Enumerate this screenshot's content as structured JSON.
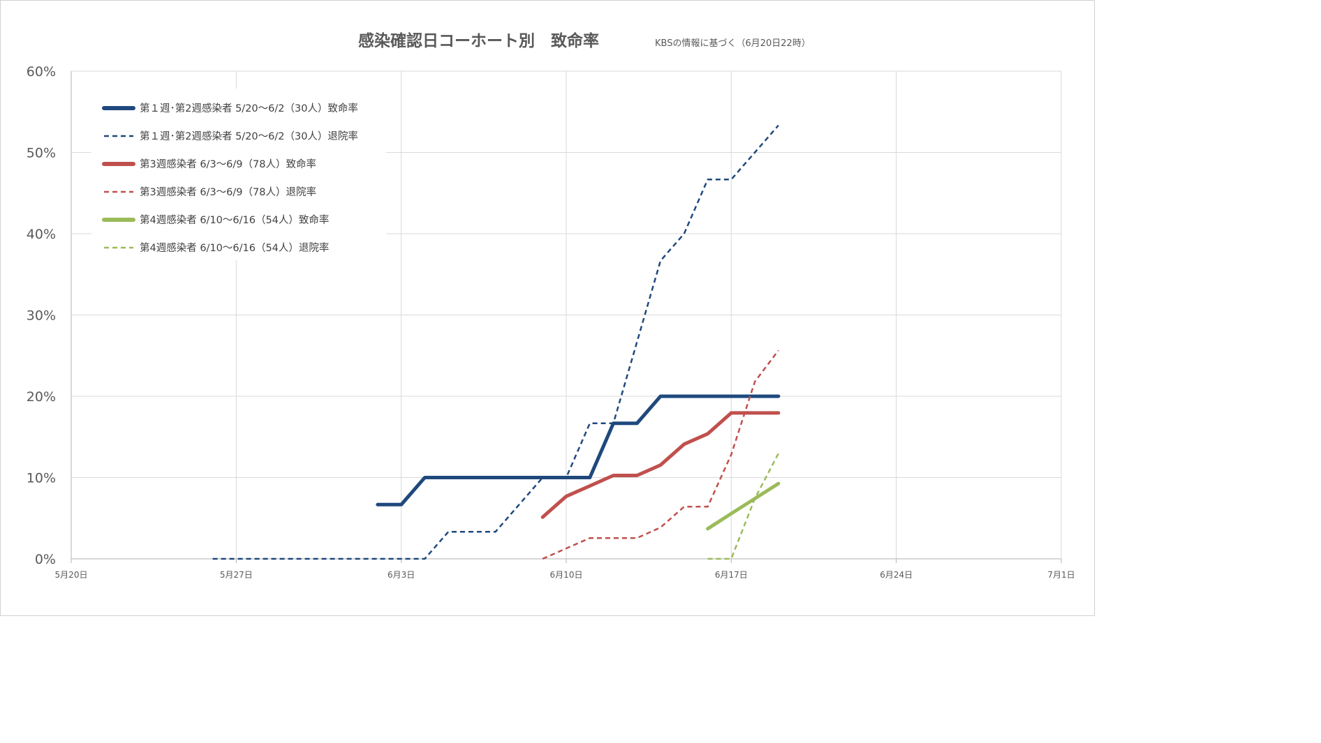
{
  "chart_data": {
    "type": "line",
    "title": "感染確認日コーホート別　致命率",
    "subtitle": "KBSの情報に基づく（6月20日22時）",
    "x_tick_labels": [
      "5月20日",
      "5月27日",
      "6月3日",
      "6月10日",
      "6月17日",
      "6月24日",
      "7月1日"
    ],
    "x_tick_dates": [
      "2020-05-20",
      "2020-05-27",
      "2020-06-03",
      "2020-06-10",
      "2020-06-17",
      "2020-06-24",
      "2020-07-01"
    ],
    "xlim": [
      "2020-05-20",
      "2020-07-01"
    ],
    "y_tick_labels": [
      "0%",
      "10%",
      "20%",
      "30%",
      "40%",
      "50%",
      "60%"
    ],
    "ylim": [
      0,
      60
    ],
    "grid": true,
    "legend_position": "top-left",
    "series": [
      {
        "name": "第１週･第2週感染者  5/20～6/2（30人）致命率",
        "color": "#1F497D",
        "style": "solid",
        "width": 5,
        "points": [
          [
            "2020-06-02",
            6.67
          ],
          [
            "2020-06-03",
            6.67
          ],
          [
            "2020-06-04",
            10.0
          ],
          [
            "2020-06-05",
            10.0
          ],
          [
            "2020-06-06",
            10.0
          ],
          [
            "2020-06-07",
            10.0
          ],
          [
            "2020-06-08",
            10.0
          ],
          [
            "2020-06-09",
            10.0
          ],
          [
            "2020-06-10",
            10.0
          ],
          [
            "2020-06-11",
            10.0
          ],
          [
            "2020-06-12",
            16.67
          ],
          [
            "2020-06-13",
            16.67
          ],
          [
            "2020-06-14",
            20.0
          ],
          [
            "2020-06-15",
            20.0
          ],
          [
            "2020-06-16",
            20.0
          ],
          [
            "2020-06-17",
            20.0
          ],
          [
            "2020-06-18",
            20.0
          ],
          [
            "2020-06-19",
            20.0
          ]
        ]
      },
      {
        "name": "第１週･第2週感染者  5/20～6/2（30人）退院率",
        "color": "#1F497D",
        "style": "dashed",
        "width": 2.5,
        "points": [
          [
            "2020-05-26",
            0
          ],
          [
            "2020-05-27",
            0
          ],
          [
            "2020-05-28",
            0
          ],
          [
            "2020-05-29",
            0
          ],
          [
            "2020-05-30",
            0
          ],
          [
            "2020-05-31",
            0
          ],
          [
            "2020-06-01",
            0
          ],
          [
            "2020-06-02",
            0
          ],
          [
            "2020-06-03",
            0
          ],
          [
            "2020-06-04",
            0
          ],
          [
            "2020-06-05",
            3.33
          ],
          [
            "2020-06-06",
            3.33
          ],
          [
            "2020-06-07",
            3.33
          ],
          [
            "2020-06-08",
            6.67
          ],
          [
            "2020-06-09",
            10.0
          ],
          [
            "2020-06-10",
            10.0
          ],
          [
            "2020-06-11",
            16.67
          ],
          [
            "2020-06-12",
            16.67
          ],
          [
            "2020-06-13",
            26.67
          ],
          [
            "2020-06-14",
            36.67
          ],
          [
            "2020-06-15",
            40.0
          ],
          [
            "2020-06-16",
            46.67
          ],
          [
            "2020-06-17",
            46.67
          ],
          [
            "2020-06-18",
            50.0
          ],
          [
            "2020-06-19",
            53.33
          ]
        ]
      },
      {
        "name": "第3週感染者  6/3～6/9（78人）致命率",
        "color": "#C0504D",
        "style": "solid",
        "width": 5,
        "points": [
          [
            "2020-06-09",
            5.13
          ],
          [
            "2020-06-10",
            7.69
          ],
          [
            "2020-06-11",
            8.97
          ],
          [
            "2020-06-12",
            10.26
          ],
          [
            "2020-06-13",
            10.26
          ],
          [
            "2020-06-14",
            11.54
          ],
          [
            "2020-06-15",
            14.1
          ],
          [
            "2020-06-16",
            15.38
          ],
          [
            "2020-06-17",
            17.95
          ],
          [
            "2020-06-18",
            17.95
          ],
          [
            "2020-06-19",
            17.95
          ]
        ]
      },
      {
        "name": "第3週感染者  6/3～6/9（78人）退院率",
        "color": "#C0504D",
        "style": "dashed",
        "width": 2.5,
        "points": [
          [
            "2020-06-09",
            0
          ],
          [
            "2020-06-10",
            1.28
          ],
          [
            "2020-06-11",
            2.56
          ],
          [
            "2020-06-12",
            2.56
          ],
          [
            "2020-06-13",
            2.56
          ],
          [
            "2020-06-14",
            3.85
          ],
          [
            "2020-06-15",
            6.41
          ],
          [
            "2020-06-16",
            6.41
          ],
          [
            "2020-06-17",
            12.82
          ],
          [
            "2020-06-18",
            21.79
          ],
          [
            "2020-06-19",
            25.64
          ]
        ]
      },
      {
        "name": "第4週感染者  6/10～6/16（54人）致命率",
        "color": "#9BBB59",
        "style": "solid",
        "width": 5,
        "points": [
          [
            "2020-06-16",
            3.7
          ],
          [
            "2020-06-17",
            5.56
          ],
          [
            "2020-06-18",
            7.41
          ],
          [
            "2020-06-19",
            9.26
          ]
        ]
      },
      {
        "name": "第4週感染者  6/10～6/16（54人）退院率",
        "color": "#9BBB59",
        "style": "dashed",
        "width": 2.5,
        "points": [
          [
            "2020-06-16",
            0
          ],
          [
            "2020-06-17",
            0
          ],
          [
            "2020-06-18",
            7.41
          ],
          [
            "2020-06-19",
            12.96
          ]
        ]
      }
    ]
  }
}
